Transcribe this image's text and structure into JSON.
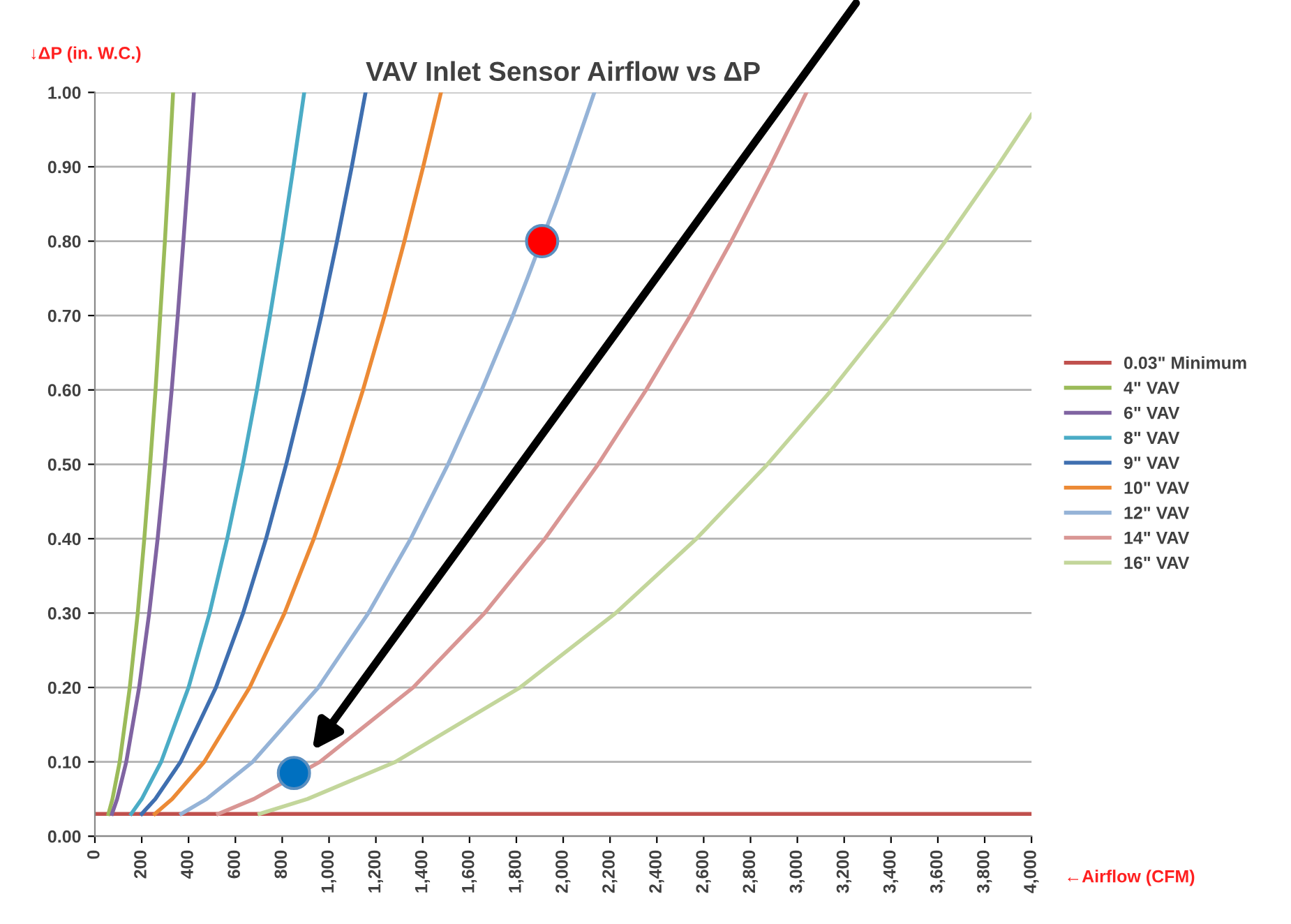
{
  "chart_data": {
    "type": "line",
    "title": "VAV Inlet Sensor Airflow vs ΔP",
    "xlabel": "←Airflow (CFM)",
    "ylabel": "↓ΔP (in. W.C.)",
    "xlim": [
      0,
      4000
    ],
    "ylim": [
      0,
      1
    ],
    "xticks": [
      0,
      200,
      400,
      600,
      800,
      {
        "value": 1000,
        "label": "1,000"
      },
      {
        "value": 1200,
        "label": "1,200"
      },
      {
        "value": 1400,
        "label": "1,400"
      },
      {
        "value": 1600,
        "label": "1,600"
      },
      {
        "value": 1800,
        "label": "1,800"
      },
      {
        "value": 2000,
        "label": "2,000"
      },
      {
        "value": 2200,
        "label": "2,200"
      },
      {
        "value": 2400,
        "label": "2,400"
      },
      {
        "value": 2600,
        "label": "2,600"
      },
      {
        "value": 2800,
        "label": "2,800"
      },
      {
        "value": 3000,
        "label": "3,000"
      },
      {
        "value": 3200,
        "label": "3,200"
      },
      {
        "value": 3400,
        "label": "3,400"
      },
      {
        "value": 3600,
        "label": "3,600"
      },
      {
        "value": 3800,
        "label": "3,800"
      },
      {
        "value": 4000,
        "label": "4,000"
      }
    ],
    "yticks": [
      {
        "value": 0,
        "label": "0.00"
      },
      {
        "value": 0.1,
        "label": "0.10"
      },
      {
        "value": 0.2,
        "label": "0.20"
      },
      {
        "value": 0.3,
        "label": "0.30"
      },
      {
        "value": 0.4,
        "label": "0.40"
      },
      {
        "value": 0.5,
        "label": "0.50"
      },
      {
        "value": 0.6,
        "label": "0.60"
      },
      {
        "value": 0.7,
        "label": "0.70"
      },
      {
        "value": 0.8,
        "label": "0.80"
      },
      {
        "value": 0.9,
        "label": "0.90"
      },
      {
        "value": 1,
        "label": "1.00"
      }
    ],
    "grid": "y",
    "legend": "right",
    "marker": "none",
    "line_style": "solid",
    "series": [
      {
        "name": "0.03\" Minimum",
        "color": "#c0504d",
        "x": [
          0,
          4000
        ],
        "values": [
          0.03,
          0.03
        ]
      },
      {
        "name": "4\" VAV",
        "color": "#9bbb59",
        "x": [
          58,
          75,
          106,
          149,
          183,
          211,
          236,
          259,
          279,
          299,
          317,
          334
        ],
        "values": [
          0.03,
          0.05,
          0.1,
          0.2,
          0.3,
          0.4,
          0.5,
          0.6,
          0.7,
          0.8,
          0.9,
          1.0
        ]
      },
      {
        "name": "6\" VAV",
        "color": "#8064a2",
        "x": [
          73,
          95,
          134,
          189,
          232,
          268,
          299,
          328,
          354,
          378,
          401,
          423
        ],
        "values": [
          0.03,
          0.05,
          0.1,
          0.2,
          0.3,
          0.4,
          0.5,
          0.6,
          0.7,
          0.8,
          0.9,
          1.0
        ]
      },
      {
        "name": "8\" VAV",
        "color": "#4bacc6",
        "x": [
          155,
          200,
          283,
          400,
          490,
          565,
          632,
          692,
          748,
          800,
          848,
          894
        ],
        "values": [
          0.03,
          0.05,
          0.1,
          0.2,
          0.3,
          0.4,
          0.5,
          0.6,
          0.7,
          0.8,
          0.9,
          1.0
        ]
      },
      {
        "name": "9\" VAV",
        "color": "#3f6fb0",
        "x": [
          200,
          258,
          366,
          517,
          633,
          731,
          817,
          895,
          967,
          1034,
          1097,
          1156
        ],
        "values": [
          0.03,
          0.05,
          0.1,
          0.2,
          0.3,
          0.4,
          0.5,
          0.6,
          0.7,
          0.8,
          0.9,
          1.0
        ]
      },
      {
        "name": "10\" VAV",
        "color": "#ec8a35",
        "x": [
          256,
          330,
          467,
          661,
          810,
          935,
          1045,
          1145,
          1237,
          1322,
          1402,
          1478
        ],
        "values": [
          0.03,
          0.05,
          0.1,
          0.2,
          0.3,
          0.4,
          0.5,
          0.6,
          0.7,
          0.8,
          0.9,
          1.0
        ]
      },
      {
        "name": "12\" VAV",
        "color": "#95b3d7",
        "x": [
          369,
          477,
          674,
          954,
          1168,
          1349,
          1508,
          1652,
          1785,
          1847,
          1967,
          2024,
          2133
        ],
        "values": [
          0.03,
          0.05,
          0.1,
          0.2,
          0.3,
          0.4,
          0.5,
          0.6,
          0.7,
          0.75,
          0.85,
          0.9,
          1.0
        ]
      },
      {
        "name": "14\" VAV",
        "color": "#d99694",
        "x": [
          526,
          679,
          961,
          1359,
          1664,
          1922,
          2149,
          2354,
          2543,
          2718,
          2883,
          3039
        ],
        "values": [
          0.03,
          0.05,
          0.1,
          0.2,
          0.3,
          0.4,
          0.5,
          0.6,
          0.7,
          0.8,
          0.9,
          1.0
        ]
      },
      {
        "name": "16\" VAV",
        "color": "#c3d69b",
        "x": [
          703,
          908,
          1284,
          1816,
          2224,
          2569,
          2872,
          3146,
          3398,
          3632,
          3853,
          4000
        ],
        "values": [
          0.03,
          0.05,
          0.1,
          0.2,
          0.3,
          0.4,
          0.5,
          0.6,
          0.7,
          0.8,
          0.9,
          0.97
        ]
      },
      {
        "type": "scatter",
        "marker": "circle",
        "color": "#ff0000",
        "x": [
          1910
        ],
        "values": [
          0.8
        ]
      },
      {
        "type": "scatter",
        "marker": "circle",
        "color": "#0070c0",
        "x": [
          850
        ],
        "values": [
          0.085
        ]
      }
    ]
  }
}
